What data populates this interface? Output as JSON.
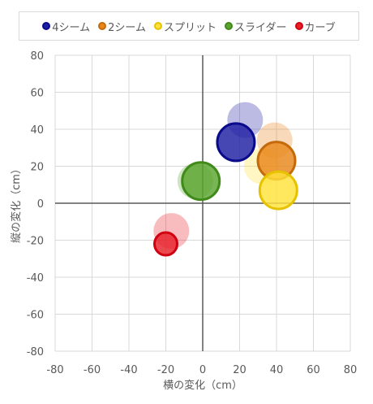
{
  "chart_data": {
    "type": "scatter",
    "xlabel": "横の変化（cm）",
    "ylabel": "縦の変化（cm）",
    "xlim": [
      -80,
      80
    ],
    "ylim": [
      -80,
      80
    ],
    "x_ticks": [
      -80,
      -60,
      -40,
      -20,
      0,
      20,
      40,
      60,
      80
    ],
    "y_ticks": [
      -80,
      -60,
      -40,
      -20,
      0,
      20,
      40,
      60,
      80
    ],
    "grid": true,
    "legend": "top",
    "series": [
      {
        "name": "4シーム",
        "color": "#1f1fa3",
        "stroke": "#0a0a8c",
        "faded": [
          {
            "x": 23,
            "y": 45
          }
        ],
        "main": [
          {
            "x": 18,
            "y": 33
          }
        ]
      },
      {
        "name": "2シーム",
        "color": "#e8861a",
        "stroke": "#c46a0a",
        "faded": [
          {
            "x": 39,
            "y": 34
          }
        ],
        "main": [
          {
            "x": 40,
            "y": 23
          }
        ]
      },
      {
        "name": "スプリット",
        "color": "#ffe23a",
        "stroke": "#e6c200",
        "faded": [
          {
            "x": 32,
            "y": 20
          }
        ],
        "main": [
          {
            "x": 41,
            "y": 7
          }
        ]
      },
      {
        "name": "スライダー",
        "color": "#5aa52e",
        "stroke": "#3f8a1a",
        "faded": [
          {
            "x": -4,
            "y": 12
          }
        ],
        "main": [
          {
            "x": -1,
            "y": 12
          }
        ]
      },
      {
        "name": "カーブ",
        "color": "#e8202a",
        "stroke": "#d00010",
        "faded": [
          {
            "x": -17,
            "y": -15
          }
        ],
        "main": [
          {
            "x": -20,
            "y": -22
          }
        ]
      }
    ]
  }
}
